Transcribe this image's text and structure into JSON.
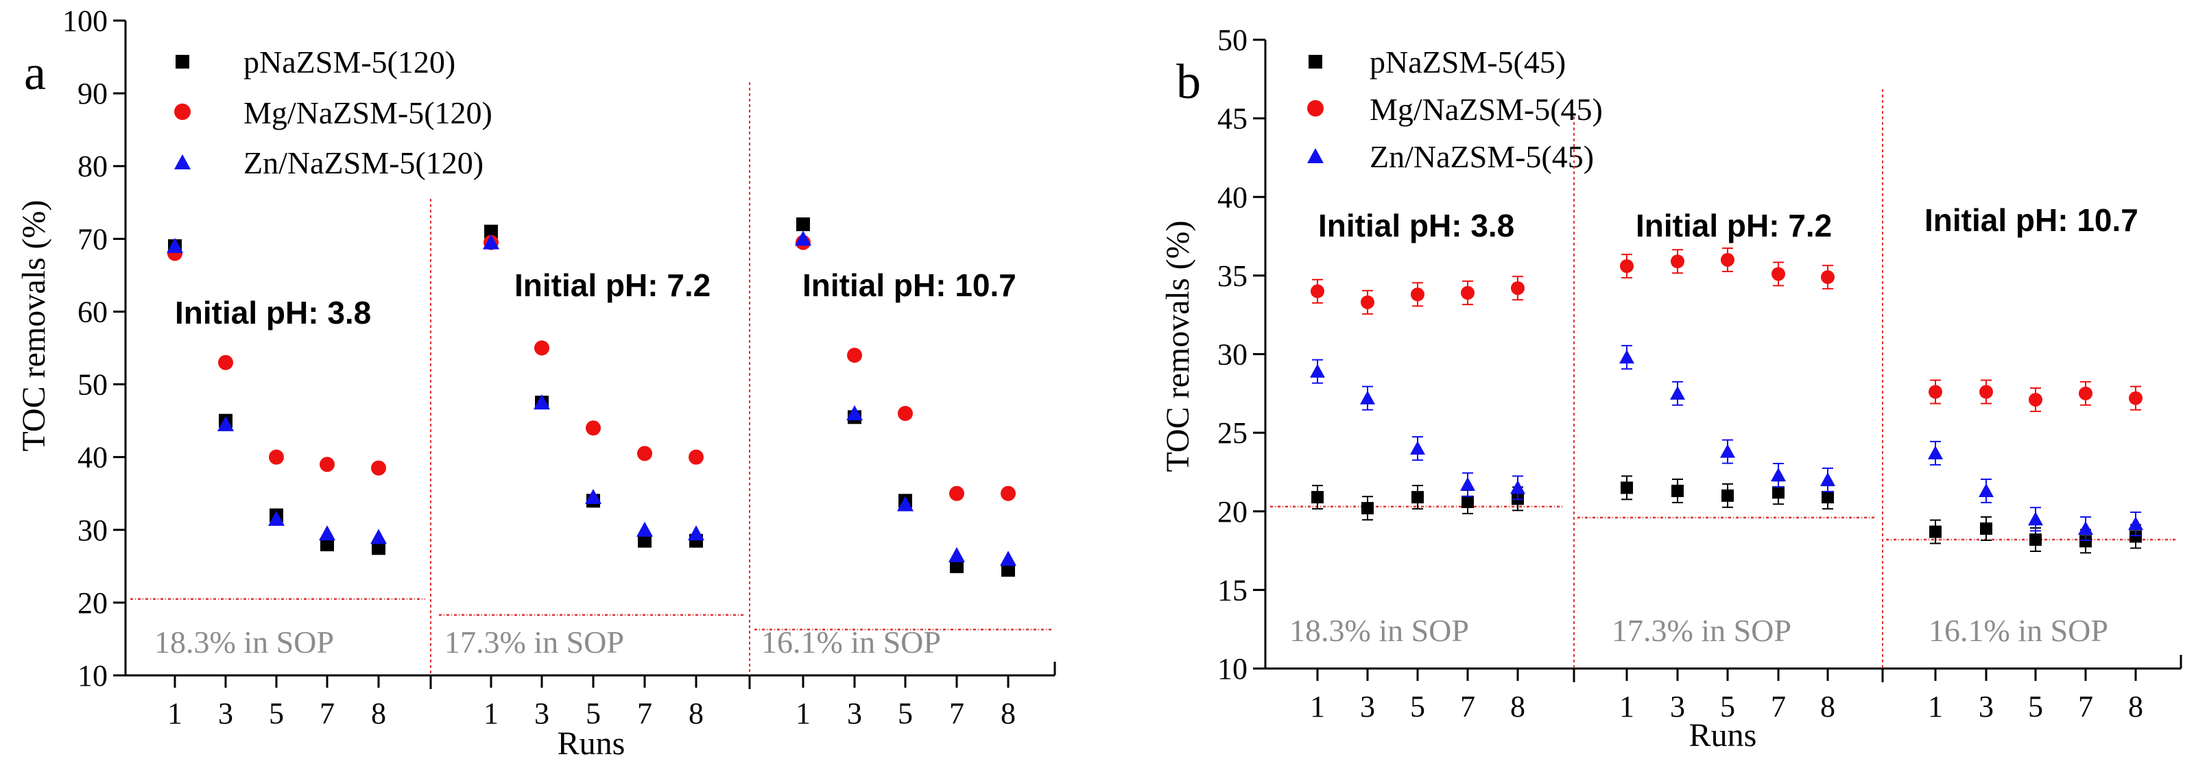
{
  "colors": {
    "pNa": "#000000",
    "Mg": "#ee1111",
    "Zn": "#1111ee",
    "sopLine": "#e03030",
    "sopText": "#8c8c8c"
  },
  "chart_data": [
    {
      "id": "a",
      "type": "scatter",
      "panel_label": "a",
      "ylabel": "TOC removals (%)",
      "xlabel": "Runs",
      "ylim": [
        10,
        100
      ],
      "yticks": [
        10,
        20,
        30,
        40,
        50,
        60,
        70,
        80,
        90,
        100
      ],
      "runs": [
        "1",
        "3",
        "5",
        "7",
        "8"
      ],
      "legend": [
        "pNaZSM-5(120)",
        "Mg/NaZSM-5(120)",
        "Zn/NaZSM-5(120)"
      ],
      "groups": [
        {
          "label": "Initial pH: 3.8",
          "sop_label": "18.3% in SOP",
          "sop_line": 20.5,
          "series": {
            "pNa": [
              69.0,
              45.0,
              32.0,
              28.0,
              27.5
            ],
            "Mg": [
              68.0,
              53.0,
              40.0,
              39.0,
              38.5
            ],
            "Zn": [
              69.0,
              44.5,
              31.5,
              29.5,
              29.0
            ]
          }
        },
        {
          "label": "Initial pH: 7.2",
          "sop_label": "17.3% in SOP",
          "sop_line": 18.3,
          "series": {
            "pNa": [
              71.0,
              47.5,
              34.0,
              28.5,
              28.5
            ],
            "Mg": [
              69.5,
              55.0,
              44.0,
              40.5,
              40.0
            ],
            "Zn": [
              69.5,
              47.5,
              34.5,
              30.0,
              29.5
            ]
          }
        },
        {
          "label": "Initial pH: 10.7",
          "sop_label": "16.1% in SOP",
          "sop_line": 16.3,
          "series": {
            "pNa": [
              72.0,
              45.5,
              34.0,
              25.0,
              24.5
            ],
            "Mg": [
              69.5,
              54.0,
              46.0,
              35.0,
              35.0
            ],
            "Zn": [
              70.0,
              46.0,
              33.5,
              26.5,
              26.0
            ]
          }
        }
      ]
    },
    {
      "id": "b",
      "type": "scatter",
      "panel_label": "b",
      "ylabel": "TOC removals (%)",
      "xlabel": "Runs",
      "ylim": [
        10,
        50
      ],
      "yticks": [
        10,
        15,
        20,
        25,
        30,
        35,
        40,
        45,
        50
      ],
      "runs": [
        "1",
        "3",
        "5",
        "7",
        "8"
      ],
      "legend": [
        "pNaZSM-5(45)",
        "Mg/NaZSM-5(45)",
        "Zn/NaZSM-5(45)"
      ],
      "groups": [
        {
          "label": "Initial pH: 3.8",
          "sop_label": "18.3% in SOP",
          "sop_line": 20.3,
          "series": {
            "pNa": [
              20.9,
              20.2,
              20.9,
              20.6,
              20.8
            ],
            "Mg": [
              34.0,
              33.3,
              33.8,
              33.9,
              34.2
            ],
            "Zn": [
              28.9,
              27.2,
              24.0,
              21.7,
              21.5
            ]
          }
        },
        {
          "label": "Initial pH: 7.2",
          "sop_label": "17.3% in SOP",
          "sop_line": 19.6,
          "series": {
            "pNa": [
              21.5,
              21.3,
              21.0,
              21.2,
              20.9
            ],
            "Mg": [
              35.6,
              35.9,
              36.0,
              35.1,
              34.9
            ],
            "Zn": [
              29.8,
              27.5,
              23.8,
              22.3,
              22.0
            ]
          }
        },
        {
          "label": "Initial pH: 10.7",
          "sop_label": "16.1% in SOP",
          "sop_line": 18.2,
          "series": {
            "pNa": [
              18.7,
              18.9,
              18.2,
              18.1,
              18.4
            ],
            "Mg": [
              27.6,
              27.6,
              27.1,
              27.5,
              27.2
            ],
            "Zn": [
              23.7,
              21.3,
              19.5,
              18.9,
              19.2
            ]
          }
        }
      ]
    }
  ]
}
